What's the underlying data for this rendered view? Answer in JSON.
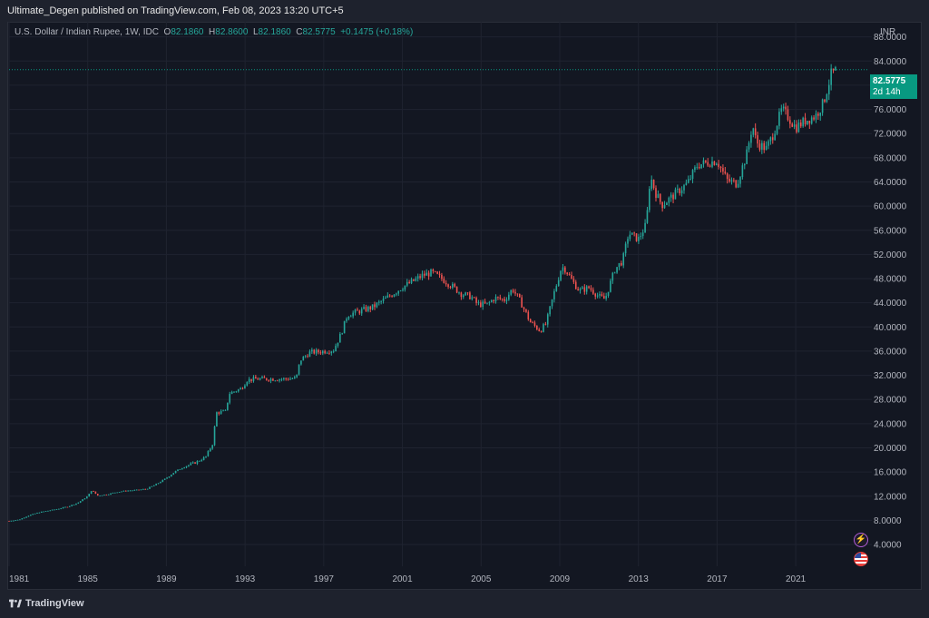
{
  "header": {
    "published": "Ultimate_Degen published on TradingView.com, Feb 08, 2023 13:20 UTC+5"
  },
  "legend": {
    "symbol": "U.S. Dollar / Indian Rupee, 1W, IDC",
    "o_label": "O",
    "o": "82.1860",
    "h_label": "H",
    "h": "82.8600",
    "l_label": "L",
    "l": "82.1860",
    "c_label": "C",
    "c": "82.5775",
    "change": "+0.1475 (+0.18%)"
  },
  "price_tag": {
    "price": "82.5775",
    "countdown": "2d 14h"
  },
  "footer": {
    "brand": "TradingView"
  },
  "colors": {
    "up": "#26a69a",
    "down": "#ef5350",
    "background": "#131722",
    "grid": "#1f2330",
    "price_line": "#089981"
  },
  "icons": {
    "bolt": "lightning-bolt-icon",
    "flag": "us-flag-icon",
    "logo": "tradingview-logo-icon"
  },
  "chart_data": {
    "type": "candlestick",
    "title": "U.S. Dollar / Indian Rupee, 1W, IDC",
    "currency_label": "INR",
    "y_ticks": [
      "4.0000",
      "8.0000",
      "12.0000",
      "16.0000",
      "20.0000",
      "24.0000",
      "28.0000",
      "32.0000",
      "36.0000",
      "40.0000",
      "44.0000",
      "48.0000",
      "52.0000",
      "56.0000",
      "60.0000",
      "64.0000",
      "68.0000",
      "72.0000",
      "76.0000",
      "80.0000",
      "84.0000",
      "88.0000"
    ],
    "x_ticks": [
      "1981",
      "1985",
      "1989",
      "1993",
      "1997",
      "2001",
      "2005",
      "2009",
      "2013",
      "2017",
      "2021"
    ],
    "ylim": [
      0.4,
      89.0
    ],
    "xlim": [
      1981.0,
      2024.5
    ],
    "last_price": 82.5775,
    "series": [
      {
        "points": [
          [
            1981.0,
            7.9
          ],
          [
            1981.5,
            8.1
          ],
          [
            1982.0,
            8.8
          ],
          [
            1982.5,
            9.3
          ],
          [
            1983.0,
            9.6
          ],
          [
            1983.5,
            9.9
          ],
          [
            1984.0,
            10.3
          ],
          [
            1984.5,
            10.9
          ],
          [
            1985.0,
            12.0
          ],
          [
            1985.2,
            13.0
          ],
          [
            1985.5,
            12.1
          ],
          [
            1986.0,
            12.3
          ],
          [
            1986.5,
            12.7
          ],
          [
            1987.0,
            12.9
          ],
          [
            1987.5,
            13.0
          ],
          [
            1988.0,
            13.2
          ],
          [
            1988.5,
            14.0
          ],
          [
            1989.0,
            15.0
          ],
          [
            1989.5,
            16.2
          ],
          [
            1990.0,
            17.0
          ],
          [
            1990.5,
            17.6
          ],
          [
            1991.0,
            18.5
          ],
          [
            1991.4,
            21.0
          ],
          [
            1991.5,
            25.8
          ],
          [
            1992.0,
            26.0
          ],
          [
            1992.2,
            29.0
          ],
          [
            1992.8,
            29.8
          ],
          [
            1993.1,
            31.2
          ],
          [
            1993.5,
            31.4
          ],
          [
            1994.0,
            31.4
          ],
          [
            1995.0,
            31.4
          ],
          [
            1995.6,
            31.5
          ],
          [
            1995.8,
            34.5
          ],
          [
            1996.0,
            35.0
          ],
          [
            1996.3,
            35.8
          ],
          [
            1996.8,
            35.9
          ],
          [
            1997.5,
            36.2
          ],
          [
            1997.9,
            39.0
          ],
          [
            1998.2,
            42.0
          ],
          [
            1998.8,
            42.6
          ],
          [
            1999.5,
            43.3
          ],
          [
            2000.3,
            45.0
          ],
          [
            2001.0,
            46.6
          ],
          [
            2001.5,
            47.5
          ],
          [
            2002.0,
            48.5
          ],
          [
            2002.5,
            49.0
          ],
          [
            2003.0,
            48.0
          ],
          [
            2003.5,
            46.8
          ],
          [
            2004.0,
            45.5
          ],
          [
            2004.5,
            45.0
          ],
          [
            2004.8,
            43.8
          ],
          [
            2005.3,
            43.7
          ],
          [
            2005.7,
            44.8
          ],
          [
            2006.2,
            44.5
          ],
          [
            2006.6,
            46.3
          ],
          [
            2007.0,
            44.2
          ],
          [
            2007.5,
            40.8
          ],
          [
            2008.0,
            39.4
          ],
          [
            2008.3,
            40.5
          ],
          [
            2008.7,
            45.5
          ],
          [
            2009.1,
            50.0
          ],
          [
            2009.3,
            49.5
          ],
          [
            2009.6,
            47.8
          ],
          [
            2010.0,
            46.0
          ],
          [
            2010.5,
            46.5
          ],
          [
            2011.0,
            45.0
          ],
          [
            2011.3,
            44.6
          ],
          [
            2011.8,
            49.5
          ],
          [
            2012.2,
            51.0
          ],
          [
            2012.5,
            55.5
          ],
          [
            2013.0,
            54.5
          ],
          [
            2013.4,
            57.0
          ],
          [
            2013.6,
            65.0
          ],
          [
            2013.9,
            62.0
          ],
          [
            2014.2,
            60.2
          ],
          [
            2014.8,
            61.8
          ],
          [
            2015.5,
            63.8
          ],
          [
            2016.0,
            66.8
          ],
          [
            2016.5,
            67.2
          ],
          [
            2017.0,
            67.5
          ],
          [
            2017.5,
            64.3
          ],
          [
            2018.0,
            63.7
          ],
          [
            2018.5,
            68.5
          ],
          [
            2018.8,
            73.5
          ],
          [
            2019.0,
            70.5
          ],
          [
            2019.5,
            69.5
          ],
          [
            2019.8,
            71.5
          ],
          [
            2020.3,
            76.0
          ],
          [
            2020.6,
            74.8
          ],
          [
            2021.0,
            73.0
          ],
          [
            2021.5,
            74.2
          ],
          [
            2022.0,
            74.9
          ],
          [
            2022.4,
            77.0
          ],
          [
            2022.8,
            81.8
          ],
          [
            2023.1,
            82.5775
          ]
        ]
      }
    ]
  }
}
